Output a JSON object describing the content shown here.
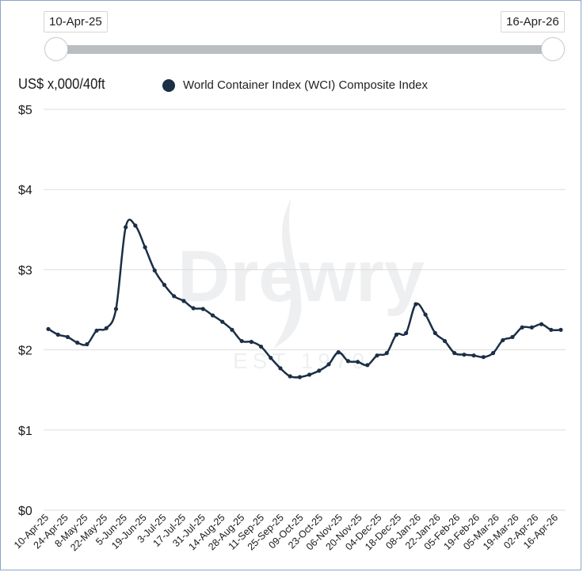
{
  "range_slider": {
    "start_label": "10-Apr-25",
    "end_label": "16-Apr-26"
  },
  "legend": {
    "label": "World Container Index (WCI) Composite Index"
  },
  "watermark": {
    "brand": "Drewry",
    "tagline": "EST 1970"
  },
  "colors": {
    "series": "#1b2f45",
    "grid": "#dddddd",
    "slider_track": "#b9bec2",
    "frame": "#8aa6c8"
  },
  "chart_data": {
    "type": "line",
    "ylabel": "US$ x,000/40ft",
    "ylim": [
      0,
      5
    ],
    "yticks": [
      0,
      1,
      2,
      3,
      4,
      5
    ],
    "ytick_labels": [
      "$0",
      "$1",
      "$2",
      "$3",
      "$4",
      "$5"
    ],
    "xtick_labels": [
      "10-Apr-25",
      "24-Apr-25",
      "8-May-25",
      "22-May-25",
      "5-Jun-25",
      "19-Jun-25",
      "3-Jul-25",
      "17-Jul-25",
      "31-Jul-25",
      "14-Aug-25",
      "28-Aug-25",
      "11-Sep-25",
      "25-Sep-25",
      "09-Oct-25",
      "23-Oct-25",
      "06-Nov-25",
      "20-Nov-25",
      "04-Dec-25",
      "18-Dec-25",
      "08-Jan-26",
      "22-Jan-26",
      "05-Feb-26",
      "19-Feb-26",
      "05-Mar-26",
      "19-Mar-26",
      "02-Apr-26",
      "16-Apr-26"
    ],
    "grid": true,
    "legend_position": "top",
    "series": [
      {
        "name": "World Container Index (WCI) Composite Index",
        "x": [
          "2025-04-10",
          "2025-04-17",
          "2025-04-24",
          "2025-05-01",
          "2025-05-08",
          "2025-05-15",
          "2025-05-22",
          "2025-05-29",
          "2025-06-05",
          "2025-06-12",
          "2025-06-19",
          "2025-06-26",
          "2025-07-03",
          "2025-07-10",
          "2025-07-17",
          "2025-07-24",
          "2025-07-31",
          "2025-08-07",
          "2025-08-14",
          "2025-08-21",
          "2025-08-28",
          "2025-09-04",
          "2025-09-11",
          "2025-09-18",
          "2025-09-25",
          "2025-10-02",
          "2025-10-09",
          "2025-10-16",
          "2025-10-23",
          "2025-10-30",
          "2025-11-06",
          "2025-11-13",
          "2025-11-20",
          "2025-11-27",
          "2025-12-04",
          "2025-12-11",
          "2025-12-18",
          "2025-12-25",
          "2026-01-01",
          "2026-01-08",
          "2026-01-15",
          "2026-01-22",
          "2026-01-29",
          "2026-02-05",
          "2026-02-12",
          "2026-02-19",
          "2026-02-26",
          "2026-03-05",
          "2026-03-12",
          "2026-03-19",
          "2026-03-26",
          "2026-04-02",
          "2026-04-09",
          "2026-04-16"
        ],
        "values": [
          2.26,
          2.19,
          2.16,
          2.09,
          2.07,
          2.24,
          2.27,
          2.51,
          3.53,
          3.55,
          3.28,
          2.99,
          2.81,
          2.67,
          2.61,
          2.52,
          2.51,
          2.43,
          2.35,
          2.25,
          2.11,
          2.1,
          2.04,
          1.9,
          1.77,
          1.67,
          1.66,
          1.69,
          1.74,
          1.82,
          1.97,
          1.86,
          1.85,
          1.81,
          1.93,
          1.96,
          2.19,
          2.21,
          2.57,
          2.44,
          2.21,
          2.11,
          1.96,
          1.94,
          1.93,
          1.91,
          1.96,
          2.12,
          2.16,
          2.28,
          2.28,
          2.32,
          2.25,
          2.25
        ]
      }
    ]
  }
}
